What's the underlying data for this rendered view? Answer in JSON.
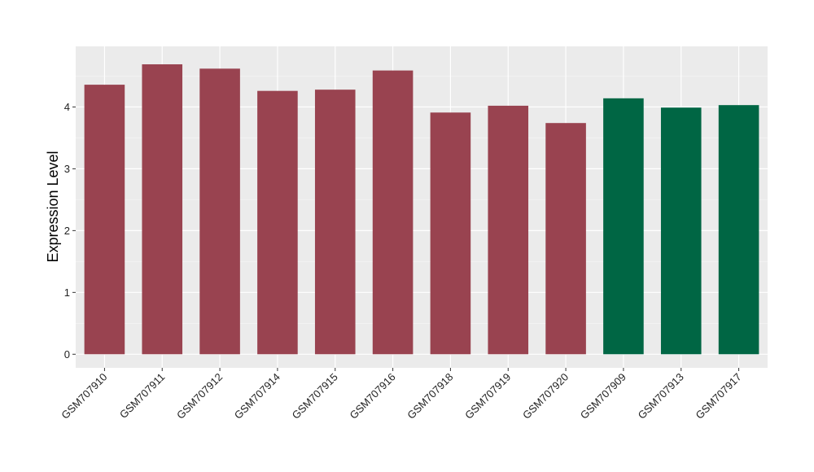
{
  "chart_data": {
    "type": "bar",
    "title": "",
    "xlabel": "",
    "ylabel": "Expression Level",
    "ylim": [
      -0.22,
      4.98
    ],
    "yticks": [
      0,
      1,
      2,
      3,
      4
    ],
    "grid": true,
    "background": "#ebebeb",
    "categories": [
      "GSM707910",
      "GSM707911",
      "GSM707912",
      "GSM707914",
      "GSM707915",
      "GSM707916",
      "GSM707918",
      "GSM707919",
      "GSM707920",
      "GSM707909",
      "GSM707913",
      "GSM707917"
    ],
    "values": [
      4.36,
      4.69,
      4.62,
      4.26,
      4.28,
      4.59,
      3.91,
      4.02,
      3.74,
      4.14,
      3.99,
      4.03
    ],
    "groups": [
      "a",
      "a",
      "a",
      "a",
      "a",
      "a",
      "a",
      "a",
      "a",
      "b",
      "b",
      "b"
    ],
    "group_colors": {
      "a": "#994350",
      "b": "#006644"
    }
  }
}
